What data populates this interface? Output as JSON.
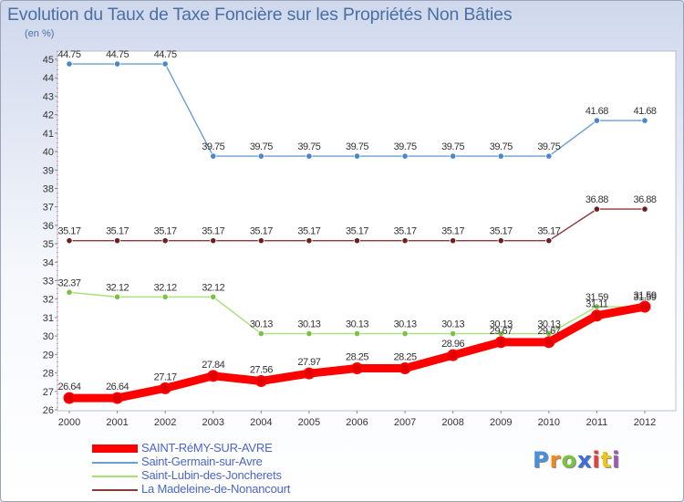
{
  "title": "Evolution du Taux de Taxe Foncière sur les Propriétés Non Bâties",
  "unit": "(en %)",
  "logo_text": "Proxiti",
  "logo_colors": [
    "#4a90d9",
    "#f08a1c",
    "#7cc242",
    "#3a6fd9",
    "#e83a3a",
    "#f0c51c",
    "#9b59b6"
  ],
  "chart_data": {
    "type": "line",
    "title": "Evolution du Taux de Taxe Foncière sur les Propriétés Non Bâties",
    "ylabel": "(en %)",
    "xlabel": "",
    "ylim": [
      26,
      45
    ],
    "grid": false,
    "categories": [
      "2000",
      "2001",
      "2002",
      "2003",
      "2004",
      "2005",
      "2006",
      "2007",
      "2008",
      "2009",
      "2010",
      "2011",
      "2012"
    ],
    "y_ticks": [
      26,
      27,
      28,
      29,
      30,
      31,
      32,
      33,
      34,
      35,
      36,
      37,
      38,
      39,
      40,
      41,
      42,
      43,
      44,
      45
    ],
    "series": [
      {
        "name": "Saint-Germain-sur-Avre",
        "color": "#6a9fd4",
        "marker": "#4a86c8",
        "values": [
          44.75,
          44.75,
          44.75,
          39.75,
          39.75,
          39.75,
          39.75,
          39.75,
          39.75,
          39.75,
          39.75,
          41.68,
          41.68
        ],
        "labels": [
          "44.75",
          "44.75",
          "44.75",
          "39.75",
          "39.75",
          "39.75",
          "39.75",
          "39.75",
          "39.75",
          "39.75",
          "39.75",
          "41.68",
          "41.68"
        ]
      },
      {
        "name": "La Madeleine-de-Nonancourt",
        "color": "#8b3a3a",
        "marker": "#6b1f1f",
        "values": [
          35.17,
          35.17,
          35.17,
          35.17,
          35.17,
          35.17,
          35.17,
          35.17,
          35.17,
          35.17,
          35.17,
          36.88,
          36.88
        ],
        "labels": [
          "35.17",
          "35.17",
          "35.17",
          "35.17",
          "35.17",
          "35.17",
          "35.17",
          "35.17",
          "35.17",
          "35.17",
          "35.17",
          "36.88",
          "36.88"
        ]
      },
      {
        "name": "Saint-Lubin-des-Joncherets",
        "color": "#a8e07a",
        "marker": "#7cc242",
        "values": [
          32.37,
          32.12,
          32.12,
          32.12,
          30.13,
          30.13,
          30.13,
          30.13,
          30.13,
          30.13,
          30.13,
          31.59,
          31.59
        ],
        "labels": [
          "32.37",
          "32.12",
          "32.12",
          "32.12",
          "30.13",
          "30.13",
          "30.13",
          "30.13",
          "30.13",
          "30.13",
          "30.13",
          "31.59",
          "31.59"
        ]
      },
      {
        "name": "SAINT-RéMY-SUR-AVRE",
        "color": "#ff0000",
        "marker": "#e00000",
        "values": [
          26.64,
          26.64,
          27.17,
          27.84,
          27.56,
          27.97,
          28.25,
          28.25,
          28.96,
          29.67,
          29.67,
          31.11,
          31.59
        ],
        "labels": [
          "26.64",
          "26.64",
          "27.17",
          "27.84",
          "27.56",
          "27.97",
          "28.25",
          "28.25",
          "28.96",
          "29.67",
          "29.67",
          "31.11",
          "31.59"
        ]
      }
    ],
    "legend": [
      "SAINT-RéMY-SUR-AVRE",
      "Saint-Germain-sur-Avre",
      "Saint-Lubin-des-Joncherets",
      "La Madeleine-de-Nonancourt"
    ],
    "legend_position": "bottom-left"
  }
}
